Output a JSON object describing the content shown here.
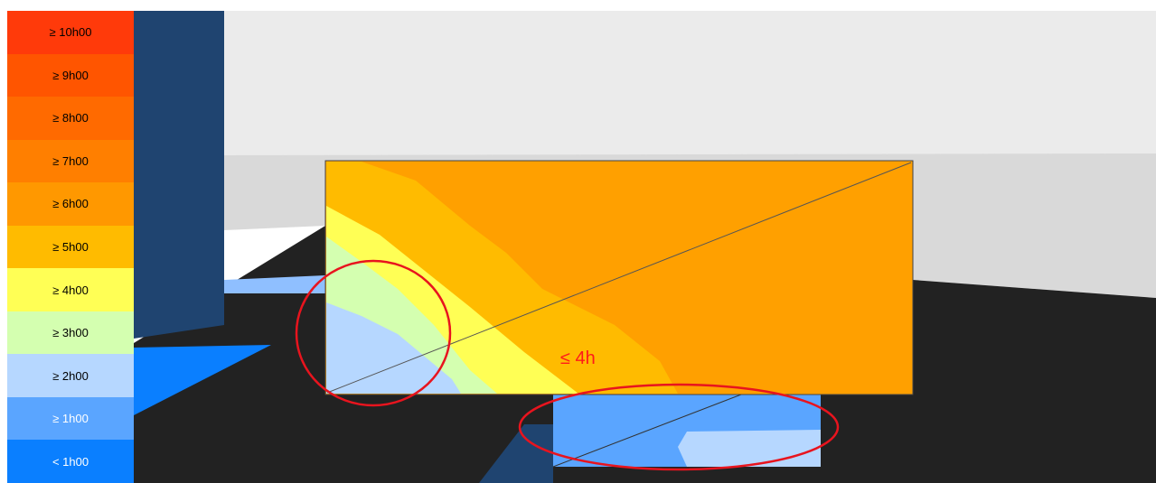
{
  "legend": {
    "items": [
      {
        "label": "≥ 10h00",
        "color": "#ff3a0a",
        "text_color": "#000000"
      },
      {
        "label": "≥ 9h00",
        "color": "#ff5500",
        "text_color": "#000000"
      },
      {
        "label": "≥ 8h00",
        "color": "#ff6a00",
        "text_color": "#000000"
      },
      {
        "label": "≥ 7h00",
        "color": "#ff7f00",
        "text_color": "#000000"
      },
      {
        "label": "≥ 6h00",
        "color": "#ff9800",
        "text_color": "#000000"
      },
      {
        "label": "≥ 5h00",
        "color": "#ffbb00",
        "text_color": "#000000"
      },
      {
        "label": "≥ 4h00",
        "color": "#ffff55",
        "text_color": "#000000"
      },
      {
        "label": "≥ 3h00",
        "color": "#d4ffb0",
        "text_color": "#000000"
      },
      {
        "label": "≥ 2h00",
        "color": "#b6d7ff",
        "text_color": "#000000"
      },
      {
        "label": "≥ 1h00",
        "color": "#5aa5ff",
        "text_color": "#ffffff"
      },
      {
        "label": "< 1h00",
        "color": "#0a7fff",
        "text_color": "#ffffff"
      }
    ]
  },
  "annotation": "≤ 4h"
}
